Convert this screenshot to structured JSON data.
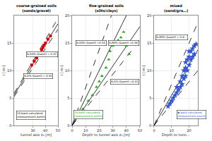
{
  "chart_data": [
    {
      "type": "scatter",
      "title": "coarse-grained soils",
      "subtitle": "(sands/gravel)",
      "xlabel": "tunnel axis z₀ [m]",
      "ylabel": "i [ m ]",
      "xlim": [
        15,
        50
      ],
      "ylim": [
        0,
        20
      ],
      "xticks": [
        30,
        40,
        50
      ],
      "yticks": [
        0,
        5,
        10,
        15
      ],
      "grid": true,
      "series": [
        {
          "type": "line",
          "color": "#000000",
          "line_style": "solid",
          "x": [
            15,
            50
          ],
          "values": [
            5.55,
            18.5
          ]
        },
        {
          "type": "line",
          "color": "#000000",
          "line_style": "dashed",
          "x": [
            15,
            50
          ],
          "values": [
            5.25,
            17.5
          ]
        },
        {
          "type": "line",
          "color": "#000000",
          "line_style": "dashed",
          "x": [
            15,
            50
          ],
          "values": [
            5.85,
            19.5
          ]
        },
        {
          "type": "scatter",
          "color": "#cc0000",
          "marker": "square",
          "x": [
            29,
            31,
            33,
            35,
            37,
            38,
            39,
            40,
            42,
            44
          ],
          "values": [
            11.0,
            11.7,
            12.3,
            13.0,
            13.8,
            14.2,
            14.6,
            15.0,
            15.7,
            16.3
          ]
        }
      ],
      "annotations": [
        {
          "text": "Kₐ50%-Quantil = 0.37",
          "x": 24.5,
          "y": 12.5
        },
        {
          "text": "Kₐ5%-Quantil = 0.35",
          "x": 22.5,
          "y": 8.5
        },
        {
          "text": "10 back-calculated\nmeasurement points",
          "x": 16.5,
          "y": 1.0
        }
      ]
    },
    {
      "type": "scatter",
      "title": "fine-grained soils",
      "subtitle": "(silts/clays)",
      "xlabel": "Depth to tunnel axis z₀ [m]",
      "ylabel": "i [ m ]",
      "xlim": [
        0,
        50
      ],
      "ylim": [
        0,
        20
      ],
      "xticks": [
        0,
        10,
        20,
        30,
        40,
        50
      ],
      "yticks": [
        0,
        5,
        10,
        15,
        20
      ],
      "grid": true,
      "series": [
        {
          "type": "line",
          "color": "#000000",
          "line_style": "solid",
          "x": [
            0,
            40
          ],
          "values": [
            0,
            20
          ]
        },
        {
          "type": "line",
          "color": "#000000",
          "line_style": "dashed",
          "x": [
            0,
            50
          ],
          "values": [
            0,
            15.5
          ]
        },
        {
          "type": "line",
          "color": "#000000",
          "line_style": "dashed",
          "x": [
            0,
            28.98550724637681
          ],
          "values": [
            0,
            20
          ]
        },
        {
          "type": "line",
          "color": "#000000",
          "line_style": "solid",
          "x": [
            0,
            50
          ],
          "values": [
            0,
            18
          ]
        },
        {
          "type": "scatter",
          "color": "#22aa22",
          "marker": "triangle",
          "x": [
            5,
            8,
            12,
            15,
            18,
            20,
            22,
            25,
            27,
            28,
            30,
            32,
            34,
            36,
            38,
            40,
            42,
            44
          ],
          "values": [
            2.0,
            3.0,
            4.5,
            5.5,
            7.0,
            8.0,
            9.0,
            10.5,
            12.0,
            13.5,
            14.5,
            15.0,
            15.5,
            16.0,
            17.0,
            14.5,
            13.0,
            15.0
          ]
        }
      ],
      "annotations": [
        {
          "text": "Kₐ50%-Quantil =0.50",
          "x": 2.5,
          "y": 14.5
        },
        {
          "text": "Kₐ90%-Quantil =0.36",
          "x": 26.5,
          "y": 14.5
        },
        {
          "text": "Kₐ5%-Quantil =0.31",
          "x": 28.0,
          "y": 7.5
        },
        {
          "text": "18 back-calculated\nmeasurement points",
          "x": 1.0,
          "y": 1.2,
          "color": "#22aa22"
        }
      ]
    },
    {
      "type": "scatter",
      "title": "mixed",
      "subtitle": "(sand/gra…)",
      "xlabel": "Depth to tunn…",
      "ylabel": "i [ m ]",
      "xlim": [
        0,
        25
      ],
      "ylim": [
        0,
        20
      ],
      "xticks": [
        0,
        10,
        20
      ],
      "yticks": [
        0,
        5,
        10,
        15,
        20
      ],
      "grid": true,
      "series": [
        {
          "type": "line",
          "color": "#000000",
          "line_style": "solid",
          "x": [
            0,
            25
          ],
          "values": [
            0,
            13.75
          ]
        },
        {
          "type": "line",
          "color": "#000000",
          "line_style": "dashed",
          "x": [
            0,
            25
          ],
          "values": [
            0,
            10
          ]
        },
        {
          "type": "line",
          "color": "#000000",
          "line_style": "dashed",
          "x": [
            0,
            25
          ],
          "values": [
            0,
            18.75
          ]
        },
        {
          "type": "scatter",
          "color": "#3355cc",
          "marker": "star",
          "x": [
            8,
            9,
            10,
            11,
            12,
            13,
            13,
            14,
            15,
            15,
            16,
            16,
            17,
            17,
            18,
            18,
            18,
            19,
            19,
            20,
            20,
            20,
            21,
            21,
            22,
            22,
            23,
            23,
            24
          ],
          "values": [
            3.5,
            4.0,
            4.5,
            5.0,
            5.5,
            6.0,
            7.0,
            6.5,
            7.0,
            8.0,
            7.5,
            9.0,
            8.5,
            10.0,
            9.0,
            10.5,
            11.5,
            10.0,
            12.0,
            11.0,
            12.5,
            13.5,
            12.0,
            13.5,
            12.5,
            14.0,
            13.0,
            14.5,
            14.8
          ]
        }
      ],
      "annotations": [
        {
          "text": "Kₐ90%-Quantil = 0.6…",
          "x": 1.0,
          "y": 15.5
        },
        {
          "text": "◆ back-calculated\nmeasurement points",
          "x": 13.0,
          "y": 1.2,
          "color": "#3355cc"
        }
      ]
    }
  ]
}
